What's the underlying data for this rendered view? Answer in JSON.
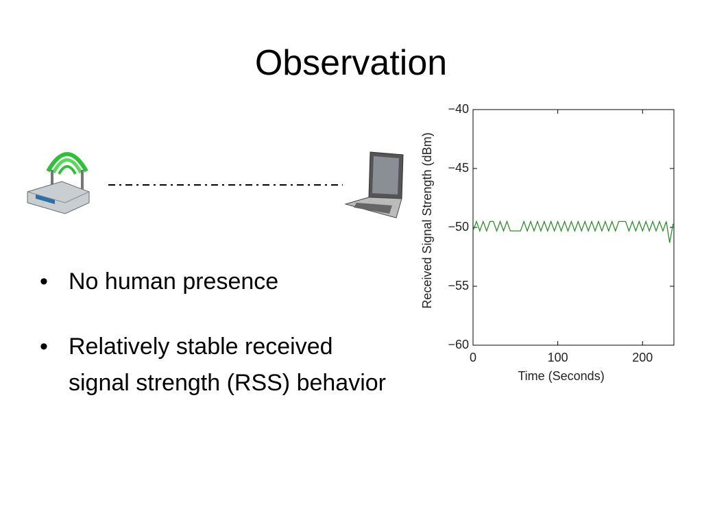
{
  "slide": {
    "title": "Observation",
    "bullets": [
      "No human presence",
      "Relatively stable received signal strength (RSS) behavior"
    ]
  },
  "chart_data": {
    "type": "line",
    "x_label": "Time (Seconds)",
    "y_label": "Received Signal Strength (dBm)",
    "x": [
      0,
      4,
      8,
      12,
      16,
      20,
      24,
      28,
      32,
      36,
      40,
      44,
      48,
      52,
      56,
      60,
      64,
      68,
      72,
      76,
      80,
      84,
      88,
      92,
      96,
      100,
      104,
      108,
      112,
      116,
      120,
      124,
      128,
      132,
      136,
      140,
      144,
      148,
      152,
      156,
      160,
      164,
      168,
      172,
      176,
      180,
      184,
      188,
      192,
      196,
      200,
      204,
      208,
      212,
      216,
      220,
      224,
      228,
      232,
      236
    ],
    "values": [
      -50.3,
      -49.5,
      -50.3,
      -49.5,
      -50.3,
      -49.5,
      -49.5,
      -50.3,
      -49.5,
      -50.3,
      -49.5,
      -50.3,
      -50.3,
      -50.3,
      -50.3,
      -49.5,
      -50.3,
      -49.5,
      -50.3,
      -49.5,
      -50.3,
      -49.5,
      -50.3,
      -49.5,
      -50.3,
      -49.5,
      -50.3,
      -49.5,
      -50.3,
      -49.5,
      -50.3,
      -49.5,
      -50.3,
      -49.5,
      -50.3,
      -49.5,
      -50.3,
      -49.5,
      -50.3,
      -49.5,
      -50.3,
      -49.5,
      -50.3,
      -49.5,
      -49.5,
      -49.5,
      -50.3,
      -49.5,
      -50.3,
      -49.5,
      -50.3,
      -49.5,
      -50.3,
      -49.5,
      -50.3,
      -49.5,
      -50.3,
      -49.5,
      -51.3,
      -49.7
    ],
    "color": "#2e8b2e",
    "xlim": [
      0,
      237
    ],
    "xticks": [
      0,
      100,
      200
    ],
    "ylim": [
      -60,
      -40
    ],
    "yticks": [
      {
        "value": -40,
        "label": "−40"
      },
      {
        "value": -45,
        "label": "−45"
      },
      {
        "value": -50,
        "label": "−50"
      },
      {
        "value": -55,
        "label": "−55"
      },
      {
        "value": -60,
        "label": "−60"
      }
    ],
    "grid": false
  }
}
